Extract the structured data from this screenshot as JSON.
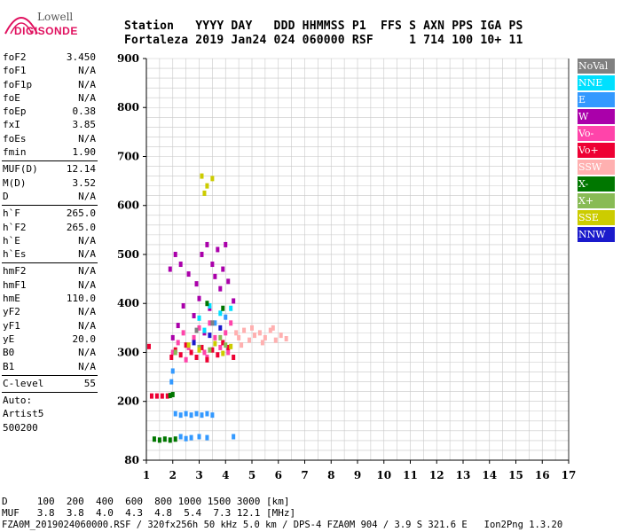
{
  "logo": {
    "line1": "Lowell",
    "line2": "DIGISONDE"
  },
  "header": {
    "labels": "Station   YYYY DAY   DDD HHMMSS P1  FFS S AXN PPS IGA PS",
    "values": "Fortaleza 2019 Jan24 024 060000 RSF     1 714 100 10+ 11"
  },
  "params": {
    "group1": [
      {
        "name": "foF2",
        "value": "3.450"
      },
      {
        "name": "foF1",
        "value": "N/A"
      },
      {
        "name": "foF1p",
        "value": "N/A"
      },
      {
        "name": "foE",
        "value": "N/A"
      },
      {
        "name": "foEp",
        "value": "0.38"
      },
      {
        "name": "fxI",
        "value": "3.85"
      },
      {
        "name": "foEs",
        "value": "N/A"
      },
      {
        "name": "fmin",
        "value": "1.90"
      }
    ],
    "group2": [
      {
        "name": "MUF(D)",
        "value": "12.14"
      },
      {
        "name": "M(D)",
        "value": "3.52"
      },
      {
        "name": "D",
        "value": "N/A"
      }
    ],
    "group3": [
      {
        "name": "h`F",
        "value": "265.0"
      },
      {
        "name": "h`F2",
        "value": "265.0"
      },
      {
        "name": "h`E",
        "value": "N/A"
      },
      {
        "name": "h`Es",
        "value": "N/A"
      }
    ],
    "group4": [
      {
        "name": "hmF2",
        "value": "N/A"
      },
      {
        "name": "hmF1",
        "value": "N/A"
      },
      {
        "name": "hmE",
        "value": "110.0"
      },
      {
        "name": "yF2",
        "value": "N/A"
      },
      {
        "name": "yF1",
        "value": "N/A"
      },
      {
        "name": "yE",
        "value": "20.0"
      },
      {
        "name": "B0",
        "value": "N/A"
      },
      {
        "name": "B1",
        "value": "N/A"
      }
    ],
    "group5": [
      {
        "name": "C-level",
        "value": "55"
      }
    ],
    "auto_label": "Auto:",
    "scaler": "Artist5",
    "version": "500200"
  },
  "legend": [
    {
      "label": "NoVal",
      "color": "#808080"
    },
    {
      "label": "NNE",
      "color": "#00e0ff"
    },
    {
      "label": "E",
      "color": "#3399ff"
    },
    {
      "label": "W",
      "color": "#aa00aa"
    },
    {
      "label": "Vo-",
      "color": "#ff44aa"
    },
    {
      "label": "Vo+",
      "color": "#ee0033"
    },
    {
      "label": "SSW",
      "color": "#ffb0b0"
    },
    {
      "label": "X-",
      "color": "#007700"
    },
    {
      "label": "X+",
      "color": "#88bb55"
    },
    {
      "label": "SSE",
      "color": "#cccc00"
    },
    {
      "label": "NNW",
      "color": "#1a1acc"
    }
  ],
  "chart_data": {
    "type": "scatter",
    "title": "",
    "xlabel": "",
    "ylabel": "",
    "xlim": [
      1,
      17
    ],
    "ylim": [
      80,
      900
    ],
    "xticks": [
      1,
      2,
      3,
      4,
      5,
      6,
      7,
      8,
      9,
      10,
      11,
      12,
      13,
      14,
      15,
      16,
      17
    ],
    "yticks": [
      80,
      200,
      300,
      400,
      500,
      600,
      700,
      800,
      900
    ],
    "grid": true,
    "legend_position": "right",
    "series": [
      {
        "name": "W",
        "color": "#aa00aa",
        "points": [
          [
            1.9,
            470
          ],
          [
            2.1,
            500
          ],
          [
            2.3,
            480
          ],
          [
            2.6,
            460
          ],
          [
            2.9,
            440
          ],
          [
            3.1,
            500
          ],
          [
            3.3,
            520
          ],
          [
            3.5,
            480
          ],
          [
            3.7,
            510
          ],
          [
            3.9,
            470
          ],
          [
            4.0,
            520
          ],
          [
            3.6,
            455
          ],
          [
            2.4,
            395
          ],
          [
            3.0,
            410
          ],
          [
            3.8,
            430
          ],
          [
            4.1,
            445
          ],
          [
            2.2,
            355
          ],
          [
            2.8,
            375
          ],
          [
            3.4,
            390
          ],
          [
            4.3,
            405
          ],
          [
            2.0,
            330
          ],
          [
            3.2,
            340
          ]
        ]
      },
      {
        "name": "Vo-",
        "color": "#ff44aa",
        "points": [
          [
            2.0,
            300
          ],
          [
            2.2,
            320
          ],
          [
            2.4,
            340
          ],
          [
            2.6,
            310
          ],
          [
            2.8,
            330
          ],
          [
            3.0,
            350
          ],
          [
            3.2,
            300
          ],
          [
            3.4,
            360
          ],
          [
            3.6,
            330
          ],
          [
            3.8,
            310
          ],
          [
            4.0,
            340
          ],
          [
            4.2,
            360
          ],
          [
            2.5,
            285
          ],
          [
            3.3,
            290
          ],
          [
            4.1,
            300
          ]
        ]
      },
      {
        "name": "Vo+",
        "color": "#ee0033",
        "points": [
          [
            1.95,
            290
          ],
          [
            2.1,
            305
          ],
          [
            2.3,
            295
          ],
          [
            2.5,
            315
          ],
          [
            2.7,
            300
          ],
          [
            2.9,
            290
          ],
          [
            3.1,
            310
          ],
          [
            3.3,
            285
          ],
          [
            3.5,
            305
          ],
          [
            3.7,
            295
          ],
          [
            3.9,
            320
          ],
          [
            4.1,
            310
          ],
          [
            4.3,
            290
          ],
          [
            1.2,
            211
          ],
          [
            1.4,
            211
          ],
          [
            1.6,
            211
          ],
          [
            1.8,
            211
          ],
          [
            1.1,
            312
          ]
        ]
      },
      {
        "name": "SSW",
        "color": "#ffb0b0",
        "points": [
          [
            4.5,
            330
          ],
          [
            4.7,
            345
          ],
          [
            4.9,
            325
          ],
          [
            5.1,
            335
          ],
          [
            5.3,
            340
          ],
          [
            5.5,
            330
          ],
          [
            5.7,
            345
          ],
          [
            5.9,
            325
          ],
          [
            6.1,
            335
          ],
          [
            6.3,
            328
          ],
          [
            4.6,
            315
          ],
          [
            5.0,
            350
          ],
          [
            5.4,
            320
          ],
          [
            5.8,
            350
          ],
          [
            4.4,
            340
          ]
        ]
      },
      {
        "name": "NNE",
        "color": "#00e0ff",
        "points": [
          [
            3.0,
            370
          ],
          [
            3.4,
            395
          ],
          [
            3.8,
            380
          ],
          [
            4.2,
            390
          ],
          [
            3.2,
            345
          ]
        ]
      },
      {
        "name": "E",
        "color": "#3399ff",
        "points": [
          [
            2.1,
            175
          ],
          [
            2.3,
            172
          ],
          [
            2.5,
            175
          ],
          [
            2.7,
            172
          ],
          [
            2.9,
            175
          ],
          [
            3.1,
            172
          ],
          [
            3.3,
            175
          ],
          [
            3.5,
            172
          ],
          [
            2.3,
            128
          ],
          [
            2.7,
            126
          ],
          [
            3.0,
            128
          ],
          [
            3.3,
            126
          ],
          [
            4.3,
            128
          ],
          [
            2.5,
            124
          ],
          [
            1.95,
            240
          ],
          [
            2.0,
            262
          ],
          [
            3.6,
            360
          ],
          [
            4.0,
            372
          ]
        ]
      },
      {
        "name": "X-",
        "color": "#007700",
        "points": [
          [
            1.3,
            123
          ],
          [
            1.5,
            121
          ],
          [
            1.7,
            123
          ],
          [
            1.9,
            121
          ],
          [
            2.1,
            123
          ],
          [
            1.9,
            212
          ],
          [
            2.0,
            214
          ],
          [
            3.3,
            400
          ],
          [
            3.9,
            390
          ]
        ]
      },
      {
        "name": "X+",
        "color": "#88bb55",
        "points": [
          [
            3.0,
            310
          ],
          [
            3.4,
            305
          ],
          [
            3.8,
            330
          ],
          [
            4.0,
            315
          ],
          [
            2.1,
            300
          ]
        ]
      },
      {
        "name": "SSE",
        "color": "#cccc00",
        "points": [
          [
            3.1,
            660
          ],
          [
            3.3,
            640
          ],
          [
            3.5,
            655
          ],
          [
            3.2,
            625
          ],
          [
            2.6,
            315
          ],
          [
            3.0,
            305
          ],
          [
            3.6,
            318
          ],
          [
            3.9,
            298
          ],
          [
            4.2,
            312
          ]
        ]
      },
      {
        "name": "NNW",
        "color": "#1a1acc",
        "points": [
          [
            3.4,
            335
          ],
          [
            3.8,
            350
          ],
          [
            2.8,
            320
          ]
        ]
      },
      {
        "name": "NoVal",
        "color": "#808080",
        "points": [
          [
            3.5,
            360
          ],
          [
            2.9,
            345
          ]
        ]
      }
    ]
  },
  "footer": {
    "dist_row": "D     100  200  400  600  800 1000 1500 3000 [km]",
    "muf_row": "MUF   3.8  3.8  4.0  4.3  4.8  5.4  7.3 12.1 [MHz]",
    "info_row": "FZA0M_2019024060000.RSF / 320fx256h 50 kHz 5.0 km / DPS-4 FZA0M 904 / 3.9 S 321.6 E   Ion2Png 1.3.20"
  }
}
